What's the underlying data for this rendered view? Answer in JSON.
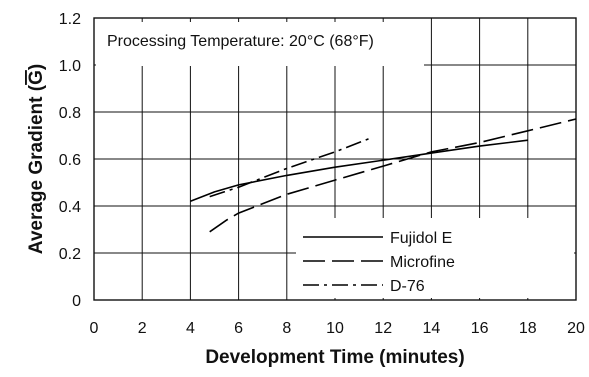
{
  "chart_data": {
    "type": "line",
    "title": "",
    "annotation": "Processing Temperature: 20°C (68°F)",
    "xlabel": "Development Time (minutes)",
    "ylabel_main": "Average Gradient (",
    "ylabel_symbol": "G",
    "ylabel_close": ")",
    "xlim": [
      0,
      20
    ],
    "ylim": [
      0,
      1.2
    ],
    "x_ticks": [
      "0",
      "2",
      "4",
      "6",
      "8",
      "10",
      "12",
      "14",
      "16",
      "18",
      "20"
    ],
    "y_ticks": [
      "0",
      "0.2",
      "0.4",
      "0.6",
      "0.8",
      "1.0",
      "1.2"
    ],
    "grid": true,
    "legend_position": "bottom-right",
    "series": [
      {
        "name": "Fujidol E",
        "style": "solid",
        "color": "#000000",
        "points": [
          [
            4.0,
            0.42
          ],
          [
            5.0,
            0.46
          ],
          [
            6.0,
            0.49
          ],
          [
            8.0,
            0.53
          ],
          [
            10.0,
            0.565
          ],
          [
            12.0,
            0.595
          ],
          [
            14.0,
            0.625
          ],
          [
            16.0,
            0.655
          ],
          [
            18.0,
            0.68
          ]
        ]
      },
      {
        "name": "Microfine",
        "style": "dashed",
        "color": "#000000",
        "points": [
          [
            4.8,
            0.29
          ],
          [
            5.5,
            0.34
          ],
          [
            6.0,
            0.37
          ],
          [
            8.0,
            0.45
          ],
          [
            10.0,
            0.51
          ],
          [
            12.0,
            0.57
          ],
          [
            14.0,
            0.63
          ],
          [
            16.0,
            0.67
          ],
          [
            18.0,
            0.72
          ],
          [
            20.0,
            0.77
          ]
        ]
      },
      {
        "name": "D-76",
        "style": "dash-dot",
        "color": "#000000",
        "points": [
          [
            4.8,
            0.44
          ],
          [
            6.0,
            0.48
          ],
          [
            8.0,
            0.56
          ],
          [
            10.0,
            0.63
          ],
          [
            11.5,
            0.69
          ]
        ]
      }
    ]
  }
}
